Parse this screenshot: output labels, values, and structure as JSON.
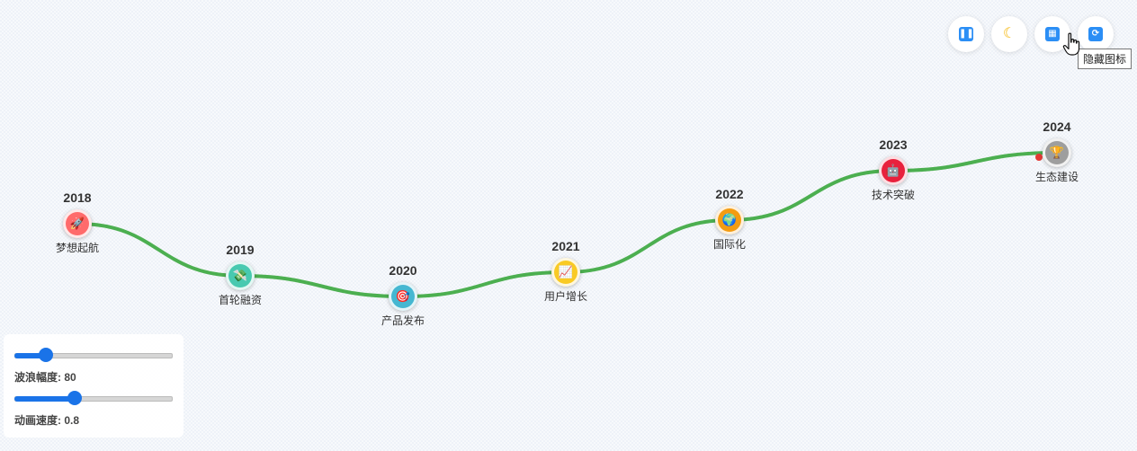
{
  "timeline": {
    "line_color": "#4caf50",
    "nodes": [
      {
        "year": "2018",
        "label": "梦想起航",
        "icon": "rocket-icon",
        "glyph": "🚀",
        "color": "#ff6b6b"
      },
      {
        "year": "2019",
        "label": "首轮融资",
        "icon": "money-icon",
        "glyph": "💸",
        "color": "#48c9b0"
      },
      {
        "year": "2020",
        "label": "产品发布",
        "icon": "target-icon",
        "glyph": "🎯",
        "color": "#45b7d1"
      },
      {
        "year": "2021",
        "label": "用户增长",
        "icon": "chart-up-icon",
        "glyph": "📈",
        "color": "#f9ca24"
      },
      {
        "year": "2022",
        "label": "国际化",
        "icon": "globe-icon",
        "glyph": "🌍",
        "color": "#f39c12"
      },
      {
        "year": "2023",
        "label": "技术突破",
        "icon": "robot-icon",
        "glyph": "🤖",
        "color": "#e8213c"
      },
      {
        "year": "2024",
        "label": "生态建设",
        "icon": "trophy-icon",
        "glyph": "🏆",
        "color": "#9e9e9e"
      }
    ]
  },
  "controls": {
    "pause_icon": "pause-icon",
    "theme_icon": "moon-icon",
    "toggle_icons_icon": "grid-icon",
    "reset_icon": "refresh-icon",
    "tooltip": "隐藏图标"
  },
  "settings": {
    "amplitude_label": "波浪幅度: 80",
    "amplitude_value": 80,
    "amplitude_fraction": 0.2,
    "speed_label": "动画速度: 0.8",
    "speed_value": 0.8,
    "speed_fraction": 0.38,
    "accent": "#1a73e8"
  }
}
